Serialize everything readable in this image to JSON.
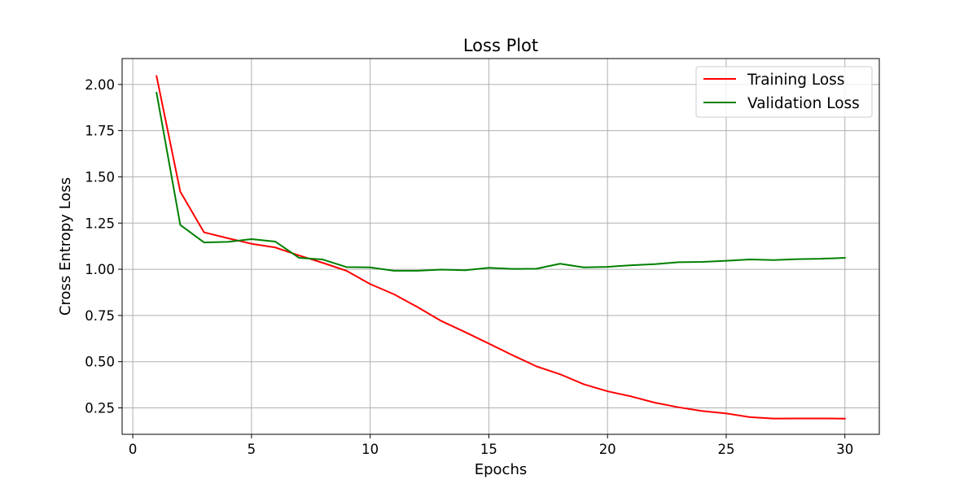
{
  "chart_data": {
    "type": "line",
    "title": "Loss Plot",
    "xlabel": "Epochs",
    "ylabel": "Cross Entropy Loss",
    "xlim": [
      -0.45,
      31.45
    ],
    "ylim": [
      0.107,
      2.14
    ],
    "xticks": [
      0,
      5,
      10,
      15,
      20,
      25,
      30
    ],
    "yticks": [
      0.25,
      0.5,
      0.75,
      1.0,
      1.25,
      1.5,
      1.75,
      2.0
    ],
    "xtick_labels": [
      "0",
      "5",
      "10",
      "15",
      "20",
      "25",
      "30"
    ],
    "ytick_labels": [
      "0.25",
      "0.50",
      "0.75",
      "1.00",
      "1.25",
      "1.50",
      "1.75",
      "2.00"
    ],
    "grid": true,
    "legend_position": "top-right",
    "x": [
      1,
      2,
      3,
      4,
      5,
      6,
      7,
      8,
      9,
      10,
      11,
      12,
      13,
      14,
      15,
      16,
      17,
      18,
      19,
      20,
      21,
      22,
      23,
      24,
      25,
      26,
      27,
      28,
      29,
      30
    ],
    "series": [
      {
        "name": "Training Loss",
        "color": "#ff0000",
        "values": [
          2.045,
          1.42,
          1.2,
          1.168,
          1.138,
          1.118,
          1.075,
          1.035,
          0.992,
          0.92,
          0.865,
          0.795,
          0.72,
          0.66,
          0.598,
          0.535,
          0.475,
          0.432,
          0.378,
          0.34,
          0.312,
          0.278,
          0.253,
          0.233,
          0.22,
          0.2,
          0.192,
          0.193,
          0.193,
          0.192
        ]
      },
      {
        "name": "Validation Loss",
        "color": "#008000",
        "values": [
          1.955,
          1.24,
          1.145,
          1.148,
          1.163,
          1.15,
          1.062,
          1.053,
          1.012,
          1.01,
          0.992,
          0.992,
          0.998,
          0.995,
          1.008,
          1.002,
          1.003,
          1.03,
          1.01,
          1.013,
          1.022,
          1.028,
          1.038,
          1.04,
          1.046,
          1.053,
          1.05,
          1.055,
          1.057,
          1.062
        ]
      }
    ]
  }
}
